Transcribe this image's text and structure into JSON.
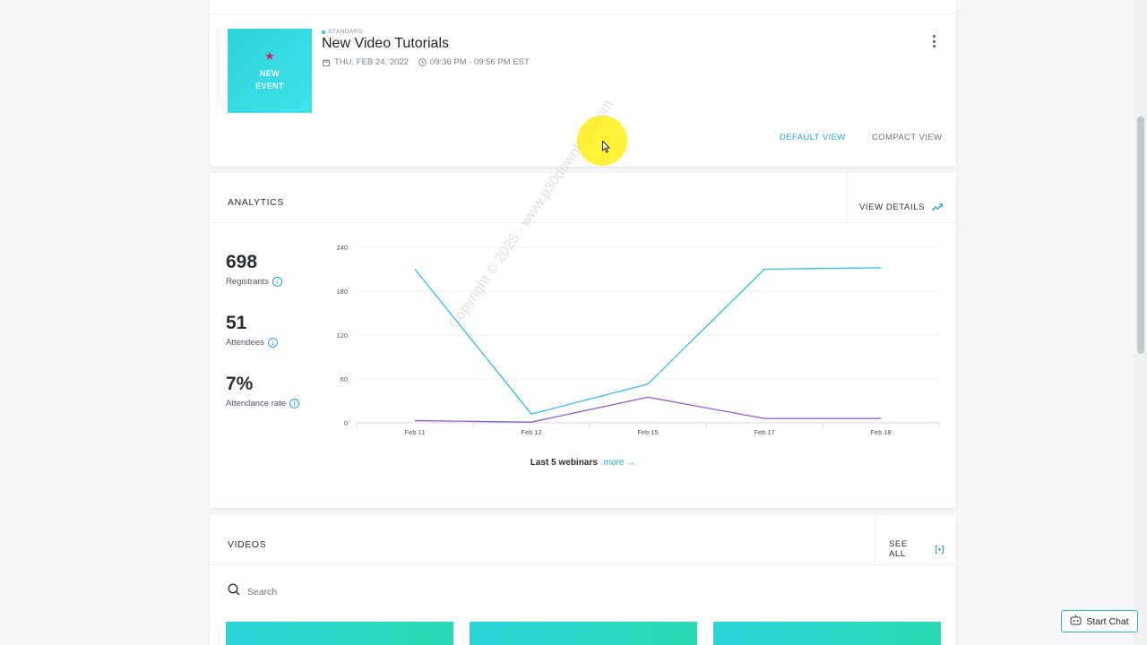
{
  "event": {
    "thumbnail_lines": [
      "NEW",
      "EVENT"
    ],
    "type_label": "STANDARD",
    "title": "New Video Tutorials",
    "date": "THU, FEB 24, 2022",
    "time": "09:36 PM - 09:56 PM EST",
    "view_default": "DEFAULT VIEW",
    "view_compact": "COMPACT VIEW"
  },
  "analytics": {
    "title": "ANALYTICS",
    "view_details": "VIEW DETAILS",
    "stats": [
      {
        "value": "698",
        "label": "Registrants",
        "color": "#2bb6e0"
      },
      {
        "value": "51",
        "label": "Attendees",
        "color": "#2a9fd0"
      },
      {
        "value": "7%",
        "label": "Attendance rate",
        "color": "#d0175e"
      }
    ],
    "footer_text": "Last 5 webinars",
    "footer_more": "more"
  },
  "chart_data": {
    "type": "line",
    "categories": [
      "Feb 11",
      "Feb 12",
      "Feb 15",
      "Feb 17",
      "Feb 18"
    ],
    "yticks": [
      0,
      60,
      120,
      180,
      240
    ],
    "ylim": [
      0,
      240
    ],
    "grid": true,
    "series": [
      {
        "values": [
          210,
          12,
          53,
          210,
          212
        ],
        "color": "#2bc4e0"
      },
      {
        "values": [
          3,
          1,
          35,
          6,
          6
        ],
        "color": "#8a5cd0"
      }
    ]
  },
  "watermark": "Copyright © 2025 - www.p30download.com",
  "videos": {
    "title": "VIDEOS",
    "see_all": "SEE ALL",
    "search_placeholder": "Search"
  },
  "chat": {
    "label": "Start Chat"
  }
}
